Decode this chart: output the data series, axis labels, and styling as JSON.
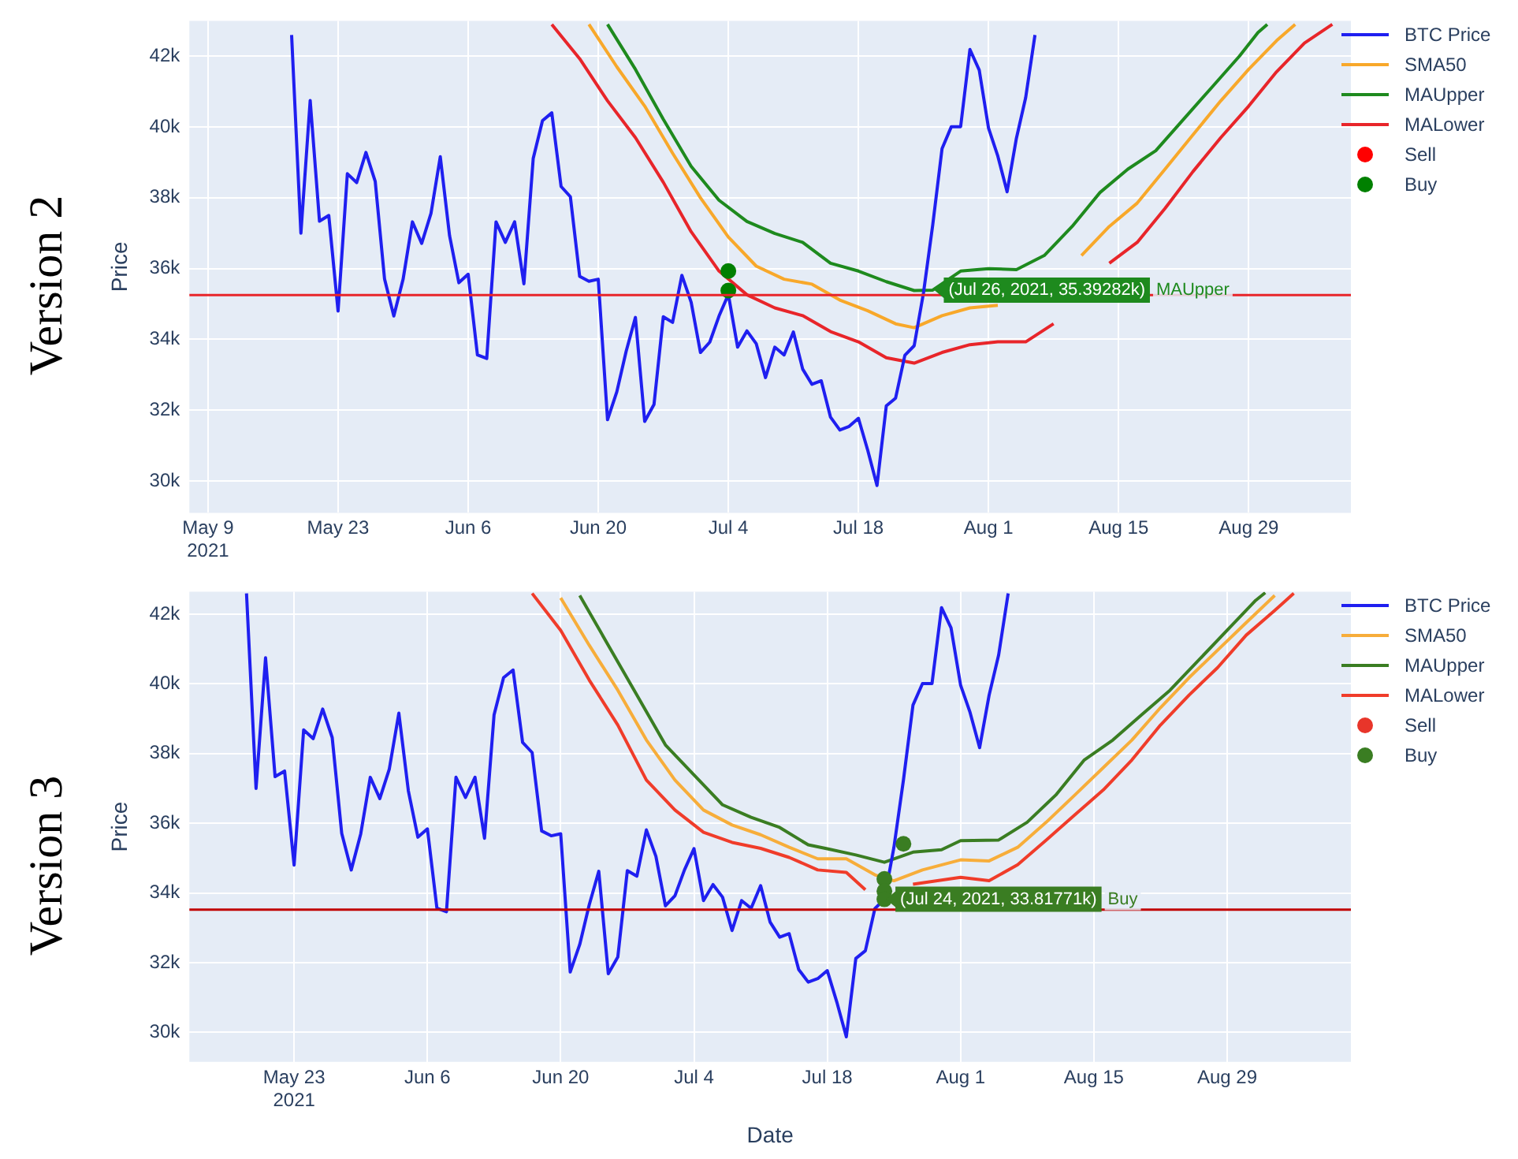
{
  "chart_data": [
    {
      "type": "line",
      "title": "Version 2",
      "ylabel": "Price",
      "grid": true,
      "legend": "top right",
      "marker": "none",
      "xlim": [
        "2021-05-07",
        "2021-09-09"
      ],
      "xticks": [
        {
          "value": "2021-05-09",
          "label": "May 9\n2021"
        },
        {
          "value": "2021-05-23",
          "label": "May 23"
        },
        {
          "value": "2021-06-06",
          "label": "Jun 6"
        },
        {
          "value": "2021-06-20",
          "label": "Jun 20"
        },
        {
          "value": "2021-07-04",
          "label": "Jul 4"
        },
        {
          "value": "2021-07-18",
          "label": "Jul 18"
        },
        {
          "value": "2021-08-01",
          "label": "Aug 1"
        },
        {
          "value": "2021-08-15",
          "label": "Aug 15"
        },
        {
          "value": "2021-08-29",
          "label": "Aug 29"
        }
      ],
      "ylim": [
        29100,
        43000
      ],
      "yticks": [
        {
          "value": 30000,
          "label": "30k"
        },
        {
          "value": 32000,
          "label": "32k"
        },
        {
          "value": 34000,
          "label": "34k"
        },
        {
          "value": 36000,
          "label": "36k"
        },
        {
          "value": 38000,
          "label": "38k"
        },
        {
          "value": 40000,
          "label": "40k"
        },
        {
          "value": 42000,
          "label": "42k"
        }
      ],
      "x": [
        "2021-05-18",
        "2021-05-19",
        "2021-05-20",
        "2021-05-21",
        "2021-05-22",
        "2021-05-23",
        "2021-05-24",
        "2021-05-25",
        "2021-05-26",
        "2021-05-27",
        "2021-05-28",
        "2021-05-29",
        "2021-05-30",
        "2021-05-31",
        "2021-06-01",
        "2021-06-02",
        "2021-06-03",
        "2021-06-04",
        "2021-06-05",
        "2021-06-06",
        "2021-06-07",
        "2021-06-08",
        "2021-06-09",
        "2021-06-10",
        "2021-06-11",
        "2021-06-12",
        "2021-06-13",
        "2021-06-14",
        "2021-06-15",
        "2021-06-16",
        "2021-06-17",
        "2021-06-18",
        "2021-06-19",
        "2021-06-20",
        "2021-06-21",
        "2021-06-22",
        "2021-06-23",
        "2021-06-24",
        "2021-06-25",
        "2021-06-26",
        "2021-06-27",
        "2021-06-28",
        "2021-06-29",
        "2021-06-30",
        "2021-07-01",
        "2021-07-02",
        "2021-07-03",
        "2021-07-04",
        "2021-07-05",
        "2021-07-06",
        "2021-07-07",
        "2021-07-08",
        "2021-07-09",
        "2021-07-10",
        "2021-07-11",
        "2021-07-12",
        "2021-07-13",
        "2021-07-14",
        "2021-07-15",
        "2021-07-16",
        "2021-07-17",
        "2021-07-18",
        "2021-07-19",
        "2021-07-20",
        "2021-07-21",
        "2021-07-22",
        "2021-07-23",
        "2021-07-24",
        "2021-07-25",
        "2021-07-26",
        "2021-07-27",
        "2021-07-28",
        "2021-07-29",
        "2021-07-30",
        "2021-07-31",
        "2021-08-01",
        "2021-08-02",
        "2021-08-03",
        "2021-08-04",
        "2021-08-05",
        "2021-08-06"
      ],
      "series": [
        {
          "name": "BTC Price",
          "color": "#1f1ff0",
          "values": [
            42600,
            37000,
            40750,
            37340,
            37500,
            34800,
            38680,
            38430,
            39280,
            38460,
            35710,
            34660,
            35700,
            37320,
            36710,
            37560,
            39160,
            36930,
            35600,
            35840,
            33560,
            33460,
            37320,
            36740,
            37320,
            35570,
            39110,
            40180,
            40400,
            38320,
            38030,
            35780,
            35640,
            35700,
            31730,
            32520,
            33660,
            34620,
            31680,
            32160,
            34640,
            34480,
            35810,
            35050,
            33630,
            33920,
            34660,
            35270,
            33780,
            34240,
            33880,
            32920,
            33780,
            33560,
            34210,
            33160,
            32730,
            32830,
            31800,
            31440,
            31540,
            31770,
            30870,
            29870,
            32120,
            32340,
            33550,
            33820,
            35310,
            37240,
            39390,
            40010,
            40010,
            42190,
            41610,
            39970,
            39180,
            38170,
            39680,
            40830,
            42600
          ]
        },
        {
          "name": "SMA50",
          "color": "#f8a82a",
          "x": [
            "2021-06-19",
            "2021-06-22",
            "2021-06-25",
            "2021-06-28",
            "2021-07-01",
            "2021-07-04",
            "2021-07-07",
            "2021-07-10",
            "2021-07-13",
            "2021-07-16",
            "2021-07-19",
            "2021-07-22",
            "2021-07-24",
            "2021-07-27",
            "2021-07-30",
            "2021-08-02",
            "2021-08-05",
            "2021-08-08",
            "2021-08-11",
            "2021-08-14",
            "2021-08-17",
            "2021-08-20",
            "2021-08-23",
            "2021-08-26",
            "2021-08-29",
            "2021-09-01",
            "2021-09-03"
          ],
          "values": [
            42900,
            41700,
            40590,
            39260,
            38000,
            36890,
            36070,
            35700,
            35560,
            35110,
            34810,
            34440,
            34330,
            34670,
            34890,
            34960,
            null,
            null,
            36370,
            37190,
            37850,
            38810,
            39780,
            40740,
            41630,
            42440,
            42900
          ]
        },
        {
          "name": "MAUpper",
          "color": "#1e8a1e",
          "x": [
            "2021-06-21",
            "2021-06-24",
            "2021-06-27",
            "2021-06-30",
            "2021-07-03",
            "2021-07-06",
            "2021-07-09",
            "2021-07-12",
            "2021-07-15",
            "2021-07-18",
            "2021-07-21",
            "2021-07-24",
            "2021-07-26",
            "2021-07-29",
            "2021-08-01",
            "2021-08-04",
            "2021-08-07",
            "2021-08-10",
            "2021-08-13",
            "2021-08-16",
            "2021-08-19",
            "2021-08-22",
            "2021-08-25",
            "2021-08-28",
            "2021-08-30",
            "2021-08-31"
          ],
          "values": [
            42900,
            41630,
            40220,
            38890,
            37930,
            37330,
            36990,
            36740,
            36150,
            35930,
            35630,
            35380,
            35392.82,
            35930,
            36000,
            35970,
            36370,
            37190,
            38150,
            38810,
            39330,
            40220,
            41110,
            42000,
            42670,
            42900
          ]
        },
        {
          "name": "MALower",
          "color": "#e8252a",
          "x": [
            "2021-06-15",
            "2021-06-18",
            "2021-06-21",
            "2021-06-24",
            "2021-06-27",
            "2021-06-30",
            "2021-07-03",
            "2021-07-06",
            "2021-07-09",
            "2021-07-12",
            "2021-07-15",
            "2021-07-18",
            "2021-07-21",
            "2021-07-24",
            "2021-07-27",
            "2021-07-30",
            "2021-08-02",
            "2021-08-05",
            "2021-08-08",
            "2021-08-11",
            "2021-08-14",
            "2021-08-17",
            "2021-08-20",
            "2021-08-23",
            "2021-08-26",
            "2021-08-29",
            "2021-09-01",
            "2021-09-04",
            "2021-09-07"
          ],
          "values": [
            42900,
            41930,
            40740,
            39700,
            38440,
            37040,
            35930,
            35260,
            34890,
            34670,
            34220,
            33930,
            33480,
            33330,
            33630,
            33850,
            33930,
            33930,
            34440,
            null,
            36150,
            36740,
            37700,
            38740,
            39700,
            40590,
            41560,
            42370,
            42900
          ]
        },
        {
          "name": "Sell",
          "type": "scatter",
          "marker": "circle",
          "color": "#ff0000",
          "x": [
            null
          ],
          "values": [
            null
          ]
        },
        {
          "name": "Buy",
          "type": "scatter",
          "marker": "circle",
          "color": "#008000",
          "x": [
            "2021-07-04",
            "2021-07-04"
          ],
          "values": [
            35930,
            35380
          ]
        }
      ],
      "ref_lines": [
        {
          "axis": "y",
          "value": 35250,
          "color": "#e8252a"
        }
      ],
      "annotations": [
        {
          "text": "(Jul 26, 2021, 35.39282k)",
          "x": "2021-07-26",
          "y": 35392.82
        }
      ]
    },
    {
      "type": "line",
      "title": "Version 3",
      "ylabel": "Price",
      "xlabel": "Date",
      "grid": true,
      "legend": "top right",
      "marker": "none",
      "xlim": [
        "2021-05-12",
        "2021-09-11"
      ],
      "xticks": [
        {
          "value": "2021-05-23",
          "label": "May 23\n2021"
        },
        {
          "value": "2021-06-06",
          "label": "Jun 6"
        },
        {
          "value": "2021-06-20",
          "label": "Jun 20"
        },
        {
          "value": "2021-07-04",
          "label": "Jul 4"
        },
        {
          "value": "2021-07-18",
          "label": "Jul 18"
        },
        {
          "value": "2021-08-01",
          "label": "Aug 1"
        },
        {
          "value": "2021-08-15",
          "label": "Aug 15"
        },
        {
          "value": "2021-08-29",
          "label": "Aug 29"
        }
      ],
      "ylim": [
        29150,
        42650
      ],
      "yticks": [
        {
          "value": 30000,
          "label": "30k"
        },
        {
          "value": 32000,
          "label": "32k"
        },
        {
          "value": 34000,
          "label": "34k"
        },
        {
          "value": 36000,
          "label": "36k"
        },
        {
          "value": 38000,
          "label": "38k"
        },
        {
          "value": 40000,
          "label": "40k"
        },
        {
          "value": 42000,
          "label": "42k"
        }
      ],
      "x": [
        "2021-05-18",
        "2021-05-19",
        "2021-05-20",
        "2021-05-21",
        "2021-05-22",
        "2021-05-23",
        "2021-05-24",
        "2021-05-25",
        "2021-05-26",
        "2021-05-27",
        "2021-05-28",
        "2021-05-29",
        "2021-05-30",
        "2021-05-31",
        "2021-06-01",
        "2021-06-02",
        "2021-06-03",
        "2021-06-04",
        "2021-06-05",
        "2021-06-06",
        "2021-06-07",
        "2021-06-08",
        "2021-06-09",
        "2021-06-10",
        "2021-06-11",
        "2021-06-12",
        "2021-06-13",
        "2021-06-14",
        "2021-06-15",
        "2021-06-16",
        "2021-06-17",
        "2021-06-18",
        "2021-06-19",
        "2021-06-20",
        "2021-06-21",
        "2021-06-22",
        "2021-06-23",
        "2021-06-24",
        "2021-06-25",
        "2021-06-26",
        "2021-06-27",
        "2021-06-28",
        "2021-06-29",
        "2021-06-30",
        "2021-07-01",
        "2021-07-02",
        "2021-07-03",
        "2021-07-04",
        "2021-07-05",
        "2021-07-06",
        "2021-07-07",
        "2021-07-08",
        "2021-07-09",
        "2021-07-10",
        "2021-07-11",
        "2021-07-12",
        "2021-07-13",
        "2021-07-14",
        "2021-07-15",
        "2021-07-16",
        "2021-07-17",
        "2021-07-18",
        "2021-07-19",
        "2021-07-20",
        "2021-07-21",
        "2021-07-22",
        "2021-07-23",
        "2021-07-24",
        "2021-07-25",
        "2021-07-26",
        "2021-07-27",
        "2021-07-28",
        "2021-07-29",
        "2021-07-30",
        "2021-07-31",
        "2021-08-01",
        "2021-08-02",
        "2021-08-03",
        "2021-08-04",
        "2021-08-05",
        "2021-08-06"
      ],
      "series": [
        {
          "name": "BTC Price",
          "color": "#1f1ff0",
          "values": [
            42600,
            37000,
            40750,
            37340,
            37500,
            34800,
            38680,
            38430,
            39280,
            38460,
            35710,
            34660,
            35700,
            37320,
            36710,
            37560,
            39160,
            36930,
            35600,
            35840,
            33560,
            33460,
            37320,
            36740,
            37320,
            35570,
            39110,
            40180,
            40400,
            38320,
            38030,
            35780,
            35640,
            35700,
            31730,
            32520,
            33660,
            34620,
            31680,
            32160,
            34640,
            34480,
            35810,
            35050,
            33630,
            33920,
            34660,
            35270,
            33780,
            34240,
            33880,
            32920,
            33780,
            33560,
            34210,
            33160,
            32730,
            32830,
            31800,
            31440,
            31540,
            31770,
            30870,
            29870,
            32120,
            32340,
            33550,
            33820,
            35310,
            37240,
            39390,
            40010,
            40010,
            42190,
            41610,
            39970,
            39180,
            38170,
            39680,
            40830,
            42600
          ]
        },
        {
          "name": "SMA50",
          "color": "#f7ad3a",
          "x": [
            "2021-06-20",
            "2021-06-23",
            "2021-06-26",
            "2021-06-29",
            "2021-07-02",
            "2021-07-05",
            "2021-07-08",
            "2021-07-11",
            "2021-07-14",
            "2021-07-17",
            "2021-07-20",
            "2021-07-23",
            "2021-07-25",
            "2021-07-28",
            "2021-08-01",
            "2021-08-04",
            "2021-08-07",
            "2021-08-10",
            "2021-08-13",
            "2021-08-16",
            "2021-08-19",
            "2021-08-22",
            "2021-08-25",
            "2021-08-28",
            "2021-08-31",
            "2021-09-03"
          ],
          "values": [
            42470,
            41110,
            39820,
            38390,
            37240,
            36380,
            35950,
            35670,
            35310,
            34980,
            34980,
            34520,
            34350,
            34660,
            34950,
            34920,
            35310,
            36030,
            36810,
            37600,
            38390,
            39320,
            40180,
            40970,
            41760,
            42540
          ]
        },
        {
          "name": "MAUpper",
          "color": "#3a7d22",
          "x": [
            "2021-06-22",
            "2021-06-25",
            "2021-06-28",
            "2021-07-01",
            "2021-07-04",
            "2021-07-07",
            "2021-07-10",
            "2021-07-13",
            "2021-07-16",
            "2021-07-18",
            "2021-07-21",
            "2021-07-24",
            "2021-07-27",
            "2021-07-30",
            "2021-08-01",
            "2021-08-05",
            "2021-08-08",
            "2021-08-11",
            "2021-08-14",
            "2021-08-17",
            "2021-08-20",
            "2021-08-23",
            "2021-08-26",
            "2021-08-29",
            "2021-09-01",
            "2021-09-02"
          ],
          "values": [
            42540,
            41110,
            39680,
            38250,
            37390,
            36530,
            36170,
            35880,
            35380,
            35270,
            35090,
            34880,
            35170,
            35240,
            35500,
            35520,
            36030,
            36810,
            37820,
            38390,
            39110,
            39820,
            40680,
            41540,
            42400,
            42620
          ]
        },
        {
          "name": "MALower",
          "color": "#f03c2a",
          "x": [
            "2021-06-17",
            "2021-06-20",
            "2021-06-23",
            "2021-06-26",
            "2021-06-29",
            "2021-07-02",
            "2021-07-05",
            "2021-07-08",
            "2021-07-11",
            "2021-07-14",
            "2021-07-17",
            "2021-07-20",
            "2021-07-22",
            "2021-07-24",
            "2021-07-27",
            "2021-08-01",
            "2021-08-04",
            "2021-08-07",
            "2021-08-10",
            "2021-08-13",
            "2021-08-16",
            "2021-08-19",
            "2021-08-22",
            "2021-08-25",
            "2021-08-28",
            "2021-08-31",
            "2021-09-03",
            "2021-09-05"
          ],
          "values": [
            42600,
            41540,
            40110,
            38820,
            37240,
            36380,
            35740,
            35450,
            35280,
            35020,
            34660,
            34590,
            34090,
            null,
            34250,
            34450,
            34350,
            34810,
            35520,
            36240,
            36960,
            37820,
            38820,
            39680,
            40470,
            41400,
            42110,
            42600
          ]
        },
        {
          "name": "Sell",
          "type": "scatter",
          "marker": "circle",
          "color": "#e8352a",
          "x": [
            null
          ],
          "values": [
            null
          ]
        },
        {
          "name": "Buy",
          "type": "scatter",
          "marker": "circle",
          "color": "#3a7d22",
          "x": [
            "2021-07-24",
            "2021-07-24",
            "2021-07-24",
            "2021-07-26"
          ],
          "values": [
            34400,
            34050,
            33817.71,
            35410
          ]
        }
      ],
      "ref_lines": [
        {
          "axis": "y",
          "value": 33520,
          "color": "#c00000"
        }
      ],
      "annotations": [
        {
          "text": "(Jul 24, 2021, 33.81771k)",
          "x": "2021-07-24",
          "y": 33817.71
        }
      ]
    }
  ]
}
